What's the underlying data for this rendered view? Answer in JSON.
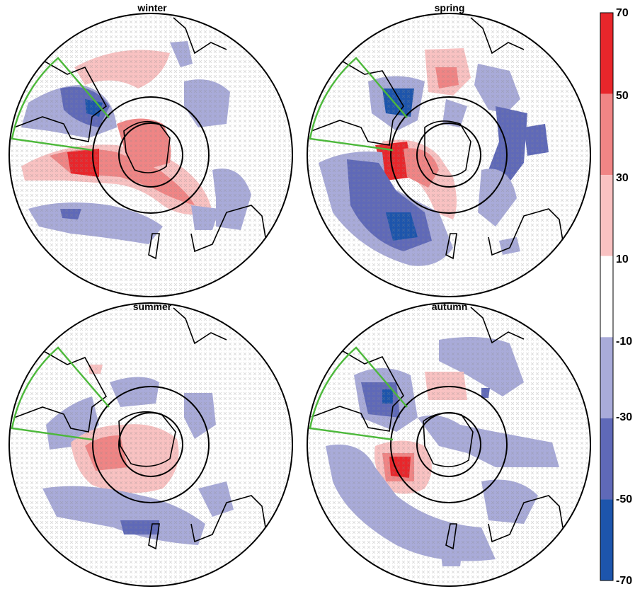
{
  "panels": [
    {
      "id": "winter",
      "title": "winter"
    },
    {
      "id": "spring",
      "title": "spring"
    },
    {
      "id": "summer",
      "title": "summer"
    },
    {
      "id": "autumn",
      "title": "autumn"
    }
  ],
  "colorbar": {
    "ticks": [
      "70",
      "50",
      "30",
      "10",
      "-10",
      "-30",
      "-50",
      "-70"
    ],
    "bins": [
      {
        "from": 50,
        "to": 70,
        "color": "#e8262b"
      },
      {
        "from": 30,
        "to": 50,
        "color": "#f08585"
      },
      {
        "from": 10,
        "to": 30,
        "color": "#f9c2c2"
      },
      {
        "from": -10,
        "to": 10,
        "color": "#ffffff"
      },
      {
        "from": -30,
        "to": -10,
        "color": "#a9abd9"
      },
      {
        "from": -50,
        "to": -30,
        "color": "#5f69b8"
      },
      {
        "from": -70,
        "to": -50,
        "color": "#1d55ac"
      }
    ]
  },
  "colors": {
    "coastline": "#000000",
    "sector_outline": "#4cb83a",
    "significance_marker": "#8a8a8a"
  }
}
